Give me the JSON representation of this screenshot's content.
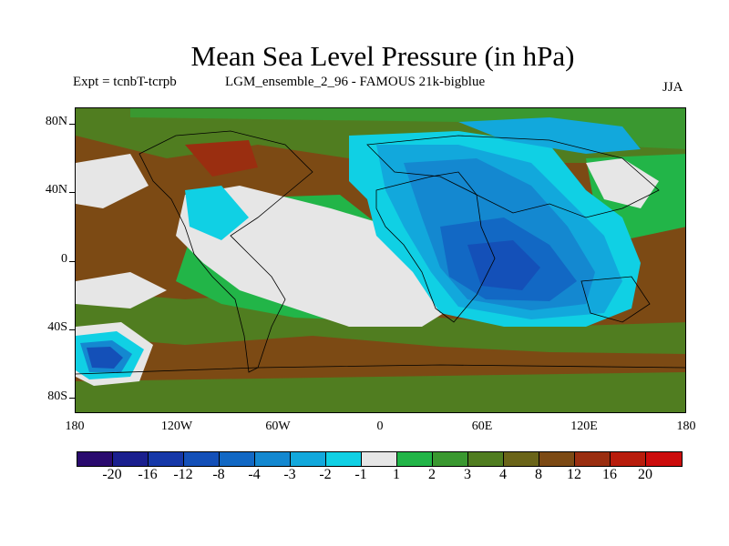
{
  "title": "Mean Sea Level Pressure (in hPa)",
  "experiment_label": "Expt = tcnbT-tcrpb",
  "ensemble_label": "LGM_ensemble_2_96 - FAMOUS 21k-bigblue",
  "season": "JJA",
  "lat_labels": [
    "80N",
    "40N",
    "0",
    "40S",
    "80S"
  ],
  "lon_labels": [
    "180",
    "120W",
    "60W",
    "0",
    "60E",
    "120E",
    "180"
  ],
  "colorbar": {
    "colors": [
      "#2a0a6e",
      "#1a1f8e",
      "#1638a8",
      "#1450b8",
      "#1268c4",
      "#1488d0",
      "#12a8dc",
      "#10d0e4",
      "#e6e6e6",
      "#22b548",
      "#3a9830",
      "#507d20",
      "#6a6418",
      "#7c4a14",
      "#9a2e10",
      "#b81c0c",
      "#cc0c0c"
    ],
    "labels": [
      "-20",
      "-16",
      "-12",
      "-8",
      "-4",
      "-3",
      "-2",
      "-1",
      "1",
      "2",
      "3",
      "4",
      "8",
      "12",
      "16",
      "20"
    ]
  },
  "field_colors": {
    "brown": "#7c4a14",
    "olive": "#507d20",
    "green": "#3a9830",
    "brightgreen": "#22b548",
    "white": "#e6e6e6",
    "cyan": "#10d0e4",
    "lightblue": "#12a8dc",
    "blue": "#1488d0",
    "midblue": "#1268c4",
    "deepblue": "#1450b8",
    "darkred": "#9a2e10"
  }
}
